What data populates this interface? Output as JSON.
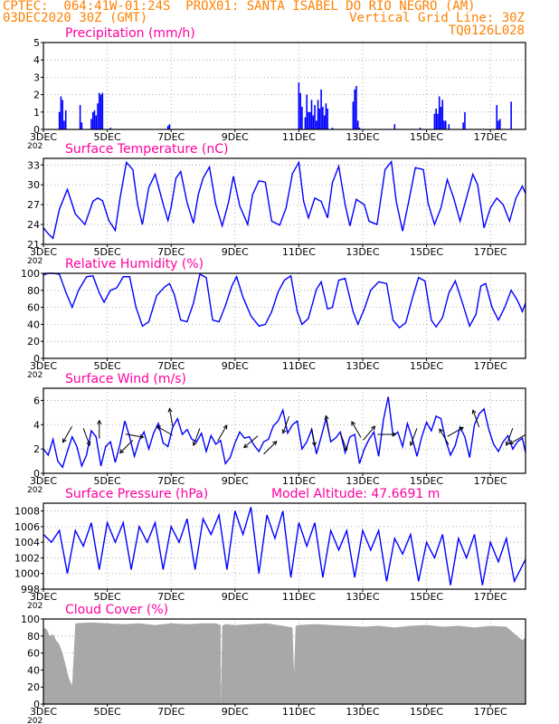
{
  "header": {
    "line1": "CPTEC:  064:41W-01:24S  PROX01: SANTA ISABEL DO RIO NEGRO (AM)",
    "date": "03DEC2020 30Z (GMT)",
    "grid_note": "Vertical Grid Line: 30Z",
    "code": "TQ0126L028",
    "text_color": "#ff8000"
  },
  "x_axis": {
    "tick_labels": [
      "3DEC",
      "5DEC",
      "7DEC",
      "9DEC",
      "11DEC",
      "13DEC",
      "15DEC",
      "17DEC"
    ],
    "tick_days": [
      3,
      5,
      7,
      9,
      11,
      13,
      15,
      17
    ],
    "start_day": 3,
    "end_day": 18.1,
    "partial_year_label": "202"
  },
  "chart_data": [
    {
      "type": "bar",
      "title": "Precipitation (mm/h)",
      "ylim": [
        0,
        5
      ],
      "yticks": [
        0,
        1,
        2,
        3,
        4,
        5
      ],
      "color": "#0000ff",
      "x": [
        3.5,
        3.55,
        3.6,
        3.65,
        3.7,
        4.15,
        4.2,
        4.5,
        4.55,
        4.6,
        4.65,
        4.7,
        4.75,
        4.8,
        4.85,
        5.1,
        6.9,
        6.95,
        11.0,
        11.05,
        11.1,
        11.2,
        11.25,
        11.3,
        11.35,
        11.4,
        11.45,
        11.5,
        11.55,
        11.6,
        11.65,
        11.7,
        11.75,
        11.8,
        11.85,
        11.9,
        12.05,
        12.7,
        12.75,
        12.8,
        12.85,
        12.9,
        14.0,
        14.8,
        15.25,
        15.3,
        15.35,
        15.4,
        15.45,
        15.5,
        15.55,
        15.6,
        15.7,
        16.15,
        16.2,
        17.2,
        17.25,
        17.3,
        17.65
      ],
      "values": [
        1.0,
        1.9,
        1.7,
        0.5,
        1.1,
        1.4,
        0.4,
        0.6,
        1.0,
        1.1,
        0.8,
        1.5,
        2.1,
        2.0,
        2.1,
        0.1,
        0.2,
        0.3,
        2.7,
        2.1,
        1.3,
        0.7,
        2.0,
        1.0,
        1.0,
        1.7,
        0.8,
        1.4,
        0.5,
        1.7,
        1.2,
        2.3,
        1.3,
        0.8,
        1.5,
        1.2,
        0.1,
        1.6,
        2.3,
        2.5,
        0.5,
        0.1,
        0.3,
        0.1,
        0.9,
        1.2,
        0.9,
        1.9,
        1.3,
        1.7,
        0.5,
        0.5,
        0.3,
        0.4,
        1.0,
        1.4,
        0.5,
        0.6,
        1.6
      ]
    },
    {
      "type": "line",
      "title": "Surface Temperature (nC)",
      "ylim": [
        21,
        34
      ],
      "yticks": [
        21,
        24,
        27,
        30,
        33
      ],
      "color": "#0000ff",
      "x": [
        3.0,
        3.15,
        3.3,
        3.5,
        3.75,
        4.0,
        4.3,
        4.55,
        4.7,
        4.85,
        5.05,
        5.25,
        5.4,
        5.6,
        5.8,
        5.95,
        6.1,
        6.3,
        6.5,
        6.75,
        6.9,
        7.0,
        7.15,
        7.3,
        7.5,
        7.7,
        7.85,
        8.0,
        8.2,
        8.4,
        8.6,
        8.8,
        8.95,
        9.15,
        9.4,
        9.55,
        9.75,
        9.95,
        10.15,
        10.4,
        10.6,
        10.8,
        11.0,
        11.15,
        11.3,
        11.5,
        11.7,
        11.9,
        12.05,
        12.25,
        12.45,
        12.6,
        12.8,
        13.05,
        13.2,
        13.45,
        13.7,
        13.9,
        14.05,
        14.25,
        14.45,
        14.65,
        14.9,
        15.05,
        15.25,
        15.45,
        15.65,
        15.85,
        16.05,
        16.25,
        16.45,
        16.6,
        16.8,
        17.0,
        17.2,
        17.4,
        17.6,
        17.8,
        18.0,
        18.1
      ],
      "values": [
        23.5,
        22.6,
        21.9,
        26.3,
        29.3,
        25.6,
        24.0,
        27.5,
        28.0,
        27.6,
        24.6,
        23.1,
        28.0,
        33.4,
        32.3,
        27.0,
        24.0,
        29.6,
        31.6,
        27.1,
        24.6,
        26.6,
        31.0,
        32.0,
        27.3,
        24.2,
        28.5,
        31.0,
        32.7,
        27.0,
        23.8,
        27.4,
        31.3,
        26.8,
        24.0,
        28.5,
        30.6,
        30.4,
        24.5,
        23.9,
        26.5,
        31.7,
        33.4,
        27.5,
        25.0,
        28.0,
        27.5,
        25.0,
        30.3,
        32.8,
        27.0,
        23.8,
        27.8,
        27.0,
        24.5,
        24.0,
        32.3,
        33.5,
        27.5,
        23.0,
        27.7,
        32.6,
        32.3,
        27.2,
        24.0,
        26.5,
        30.8,
        28.0,
        24.5,
        28.0,
        31.6,
        30.0,
        23.5,
        26.5,
        28.0,
        27.0,
        24.5,
        28.0,
        29.8,
        28.7
      ]
    },
    {
      "type": "line",
      "title": "Relative Humidity (%)",
      "ylim": [
        0,
        100
      ],
      "yticks": [
        0,
        20,
        40,
        60,
        80,
        100
      ],
      "color": "#0000ff",
      "x": [
        3.0,
        3.15,
        3.3,
        3.5,
        3.7,
        3.9,
        4.1,
        4.35,
        4.55,
        4.75,
        4.9,
        5.1,
        5.3,
        5.5,
        5.7,
        5.9,
        6.1,
        6.3,
        6.55,
        6.8,
        6.95,
        7.1,
        7.3,
        7.5,
        7.7,
        7.9,
        8.1,
        8.3,
        8.5,
        8.7,
        8.9,
        9.05,
        9.25,
        9.5,
        9.75,
        9.95,
        10.15,
        10.35,
        10.55,
        10.75,
        10.95,
        11.1,
        11.3,
        11.55,
        11.7,
        11.9,
        12.05,
        12.25,
        12.45,
        12.7,
        12.85,
        13.05,
        13.25,
        13.5,
        13.75,
        13.95,
        14.15,
        14.35,
        14.55,
        14.75,
        14.95,
        15.15,
        15.3,
        15.5,
        15.7,
        15.9,
        16.1,
        16.35,
        16.55,
        16.7,
        16.85,
        17.05,
        17.25,
        17.45,
        17.65,
        17.85,
        18.0,
        18.1
      ],
      "values": [
        98,
        100,
        100,
        99,
        78,
        60,
        80,
        96,
        97,
        77,
        66,
        80,
        83,
        96,
        96,
        60,
        38,
        43,
        74,
        84,
        88,
        75,
        45,
        43,
        65,
        99,
        95,
        45,
        43,
        62,
        85,
        96,
        72,
        50,
        38,
        40,
        55,
        78,
        92,
        97,
        55,
        40,
        47,
        81,
        90,
        58,
        60,
        92,
        94,
        55,
        40,
        58,
        80,
        90,
        88,
        45,
        36,
        42,
        70,
        95,
        91,
        45,
        37,
        48,
        77,
        91,
        68,
        38,
        52,
        85,
        88,
        60,
        45,
        60,
        80,
        68,
        55,
        65
      ]
    },
    {
      "type": "line",
      "title": "Surface Wind (m/s)",
      "ylim": [
        0,
        7
      ],
      "yticks": [
        0,
        2,
        4,
        6
      ],
      "color": "#0000ff",
      "x": [
        3.0,
        3.15,
        3.3,
        3.45,
        3.6,
        3.75,
        3.9,
        4.05,
        4.2,
        4.35,
        4.5,
        4.65,
        4.8,
        4.95,
        5.1,
        5.25,
        5.4,
        5.55,
        5.7,
        5.85,
        6.0,
        6.15,
        6.3,
        6.45,
        6.6,
        6.75,
        6.9,
        7.05,
        7.2,
        7.35,
        7.5,
        7.65,
        7.8,
        7.95,
        8.1,
        8.25,
        8.4,
        8.55,
        8.7,
        8.85,
        9.0,
        9.15,
        9.3,
        9.45,
        9.6,
        9.75,
        9.9,
        10.05,
        10.2,
        10.35,
        10.5,
        10.65,
        10.8,
        10.95,
        11.1,
        11.25,
        11.4,
        11.55,
        11.7,
        11.85,
        12.0,
        12.15,
        12.3,
        12.45,
        12.6,
        12.75,
        12.9,
        13.05,
        13.2,
        13.35,
        13.5,
        13.65,
        13.8,
        13.95,
        14.1,
        14.25,
        14.4,
        14.55,
        14.7,
        14.85,
        15.0,
        15.15,
        15.3,
        15.45,
        15.6,
        15.75,
        15.9,
        16.05,
        16.2,
        16.35,
        16.5,
        16.65,
        16.8,
        16.95,
        17.1,
        17.25,
        17.4,
        17.55,
        17.7,
        17.85,
        18.0,
        18.1
      ],
      "values": [
        2.0,
        1.5,
        2.8,
        1.0,
        0.5,
        1.8,
        3.0,
        2.2,
        0.6,
        1.5,
        3.5,
        3.0,
        0.6,
        2.2,
        2.6,
        0.9,
        2.4,
        4.3,
        3.0,
        1.4,
        2.7,
        3.4,
        2.0,
        3.3,
        4.1,
        2.5,
        2.2,
        3.8,
        4.5,
        3.2,
        3.6,
        2.8,
        2.6,
        3.3,
        1.8,
        3.1,
        2.4,
        2.7,
        0.8,
        1.3,
        2.5,
        3.4,
        2.9,
        3.0,
        2.3,
        1.8,
        2.6,
        2.8,
        3.9,
        4.3,
        5.2,
        3.3,
        4.0,
        4.3,
        2.0,
        2.6,
        3.6,
        1.6,
        3.0,
        4.5,
        2.6,
        2.9,
        3.4,
        1.7,
        3.0,
        3.2,
        0.8,
        2.0,
        2.8,
        3.4,
        1.4,
        4.4,
        6.3,
        3.1,
        3.4,
        2.2,
        4.1,
        2.9,
        1.4,
        3.0,
        4.2,
        3.5,
        4.7,
        4.5,
        2.7,
        1.5,
        2.3,
        3.8,
        3.0,
        1.3,
        4.0,
        4.9,
        5.3,
        3.6,
        2.4,
        1.8,
        2.6,
        3.1,
        2.0,
        2.6,
        2.9,
        1.7
      ]
    },
    {
      "type": "line",
      "title": "Surface Pressure (hPa)",
      "annotation": "Model Altitude: 47.6691 m",
      "ylim": [
        998,
        1009
      ],
      "yticks": [
        998,
        1000,
        1002,
        1004,
        1006,
        1008
      ],
      "color": "#0000ff",
      "x": [
        3.0,
        3.25,
        3.5,
        3.75,
        4.0,
        4.25,
        4.5,
        4.75,
        5.0,
        5.25,
        5.5,
        5.75,
        6.0,
        6.25,
        6.5,
        6.75,
        7.0,
        7.25,
        7.5,
        7.75,
        8.0,
        8.25,
        8.5,
        8.75,
        9.0,
        9.25,
        9.5,
        9.75,
        10.0,
        10.25,
        10.5,
        10.75,
        11.0,
        11.25,
        11.5,
        11.75,
        12.0,
        12.25,
        12.5,
        12.75,
        13.0,
        13.25,
        13.5,
        13.75,
        14.0,
        14.25,
        14.5,
        14.75,
        15.0,
        15.25,
        15.5,
        15.75,
        16.0,
        16.25,
        16.5,
        16.75,
        17.0,
        17.25,
        17.5,
        17.75,
        18.0,
        18.1
      ],
      "values": [
        1005.0,
        1004.0,
        1005.5,
        1000.0,
        1005.5,
        1003.5,
        1006.5,
        1000.5,
        1006.5,
        1004.0,
        1006.5,
        1000.5,
        1006.0,
        1004.0,
        1006.5,
        1000.5,
        1006.0,
        1004.0,
        1007.0,
        1000.5,
        1007.0,
        1005.0,
        1007.5,
        1000.5,
        1008.0,
        1005.0,
        1008.5,
        1000.0,
        1007.5,
        1004.5,
        1008.0,
        999.5,
        1006.5,
        1003.5,
        1006.5,
        999.5,
        1005.5,
        1003.0,
        1005.5,
        999.5,
        1005.5,
        1003.0,
        1005.5,
        999.0,
        1004.5,
        1002.5,
        1005.0,
        999.0,
        1004.0,
        1002.0,
        1005.0,
        998.5,
        1004.5,
        1002.0,
        1005.0,
        998.5,
        1004.0,
        1001.5,
        1004.5,
        999.0,
        1001.0,
        1001.8
      ]
    },
    {
      "type": "area",
      "title": "Cloud Cover (%)",
      "ylim": [
        0,
        100
      ],
      "yticks": [
        0,
        20,
        40,
        60,
        80,
        100
      ],
      "color": "#a8a8a8",
      "x": [
        3.0,
        3.1,
        3.2,
        3.3,
        3.4,
        3.5,
        3.6,
        3.7,
        3.8,
        3.9,
        4.0,
        4.5,
        5.0,
        5.5,
        6.0,
        6.5,
        7.0,
        7.5,
        8.0,
        8.4,
        8.55,
        8.56,
        8.6,
        8.7,
        9.0,
        9.5,
        10.0,
        10.5,
        10.8,
        10.85,
        10.9,
        11.0,
        11.5,
        12.0,
        12.5,
        13.0,
        13.5,
        14.0,
        14.5,
        15.0,
        15.5,
        16.0,
        16.5,
        17.0,
        17.5,
        18.0,
        18.1
      ],
      "values": [
        90,
        88,
        80,
        82,
        75,
        70,
        60,
        45,
        30,
        22,
        95,
        96,
        95,
        94,
        95,
        93,
        95,
        94,
        95,
        95,
        93,
        0,
        92,
        94,
        93,
        94,
        95,
        92,
        90,
        35,
        92,
        93,
        94,
        93,
        92,
        91,
        92,
        90,
        92,
        93,
        91,
        92,
        90,
        92,
        91,
        75,
        78
      ]
    }
  ],
  "wind_arrows": [
    {
      "day": 3.75,
      "value": 3.2,
      "dir_deg": 210
    },
    {
      "day": 4.35,
      "value": 3.0,
      "dir_deg": 160
    },
    {
      "day": 4.75,
      "value": 3.6,
      "dir_deg": 0
    },
    {
      "day": 5.6,
      "value": 2.2,
      "dir_deg": 225
    },
    {
      "day": 5.85,
      "value": 3.1,
      "dir_deg": 100
    },
    {
      "day": 6.8,
      "value": 3.5,
      "dir_deg": 300
    },
    {
      "day": 7.0,
      "value": 4.6,
      "dir_deg": 350
    },
    {
      "day": 7.8,
      "value": 3.0,
      "dir_deg": 200
    },
    {
      "day": 8.6,
      "value": 3.3,
      "dir_deg": 30
    },
    {
      "day": 9.5,
      "value": 2.6,
      "dir_deg": 230
    },
    {
      "day": 10.1,
      "value": 2.1,
      "dir_deg": 45
    },
    {
      "day": 10.6,
      "value": 4.0,
      "dir_deg": 200
    },
    {
      "day": 11.45,
      "value": 3.0,
      "dir_deg": 170
    },
    {
      "day": 11.9,
      "value": 4.0,
      "dir_deg": 350
    },
    {
      "day": 12.4,
      "value": 2.6,
      "dir_deg": 160
    },
    {
      "day": 12.8,
      "value": 3.6,
      "dir_deg": 330
    },
    {
      "day": 13.2,
      "value": 3.3,
      "dir_deg": 40
    },
    {
      "day": 13.75,
      "value": 3.2,
      "dir_deg": 90
    },
    {
      "day": 14.6,
      "value": 3.0,
      "dir_deg": 200
    },
    {
      "day": 15.55,
      "value": 3.0,
      "dir_deg": 330
    },
    {
      "day": 15.9,
      "value": 3.4,
      "dir_deg": 60
    },
    {
      "day": 16.55,
      "value": 4.5,
      "dir_deg": 340
    },
    {
      "day": 17.6,
      "value": 3.0,
      "dir_deg": 200
    },
    {
      "day": 17.85,
      "value": 2.8,
      "dir_deg": 240
    }
  ]
}
